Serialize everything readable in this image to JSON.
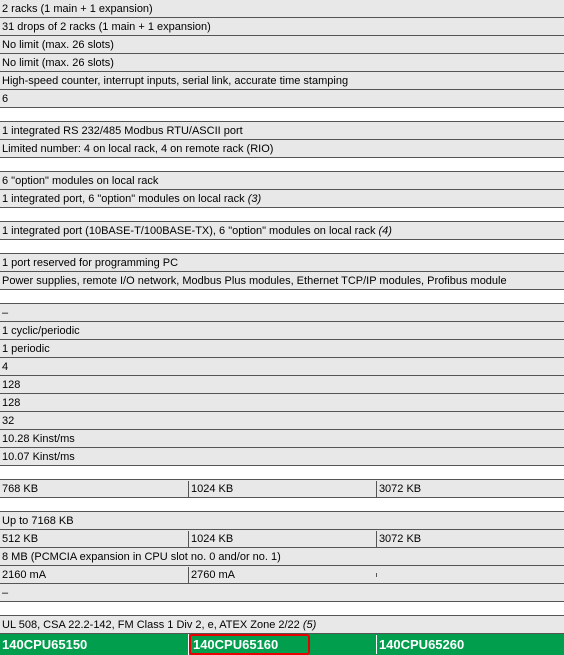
{
  "rows": {
    "r0": "2 racks (1 main + 1 expansion)",
    "r1": "31 drops of 2 racks (1 main + 1 expansion)",
    "r2": "No limit (max. 26 slots)",
    "r3": "No limit (max. 26 slots)",
    "r4": "High-speed counter, interrupt inputs, serial link, accurate time stamping",
    "r5": "6",
    "r6": "1 integrated RS 232/485 Modbus RTU/ASCII port",
    "r7": "Limited number: 4 on local rack, 4 on remote rack (RIO)",
    "r8": "6 \"option\" modules on local rack",
    "r9a": "1 integrated port, 6 \"option\" modules on local rack ",
    "r9b": "(3)",
    "r10a": "1 integrated port (10BASE-T/100BASE-TX), 6 \"option\" modules on local rack ",
    "r10b": "(4)",
    "r11": "1 port reserved for programming PC",
    "r12": "Power supplies, remote I/O network, Modbus Plus modules, Ethernet TCP/IP modules, Profibus module",
    "r13": "–",
    "r14": "1 cyclic/periodic",
    "r15": "1 periodic",
    "r16": "4",
    "r17": "128",
    "r18": "128",
    "r19": "32",
    "r20": "10.28 Kinst/ms",
    "r21": "10.07 Kinst/ms",
    "iram": {
      "c1": "768 KB",
      "c2": "1024 KB",
      "c3": "3072 KB"
    },
    "r22": "Up to 7168 KB",
    "pram": {
      "c1": "512 KB",
      "c2": "1024 KB",
      "c3": "3072 KB"
    },
    "r23": "8 MB (PCMCIA expansion in CPU slot no. 0 and/or no. 1)",
    "pow": {
      "c1": "2160 mA",
      "c2": "2760 mA",
      "c3": ""
    },
    "r24": "–",
    "r25a": "UL 508, CSA 22.2-142, FM Class 1 Div 2, ",
    "r25b": "e",
    "r25c": ", ATEX Zone 2/22 ",
    "r25d": "(5)",
    "parts": {
      "c1": "140CPU65150",
      "c2": "140CPU65160",
      "c3": "140CPU65260"
    }
  },
  "styles": {
    "row_bg": "#e8e8e8",
    "border_color": "#555555",
    "green_bg": "#009e4d",
    "highlight_border": "#e60000",
    "font_size_body": 11,
    "font_size_green": 13
  }
}
